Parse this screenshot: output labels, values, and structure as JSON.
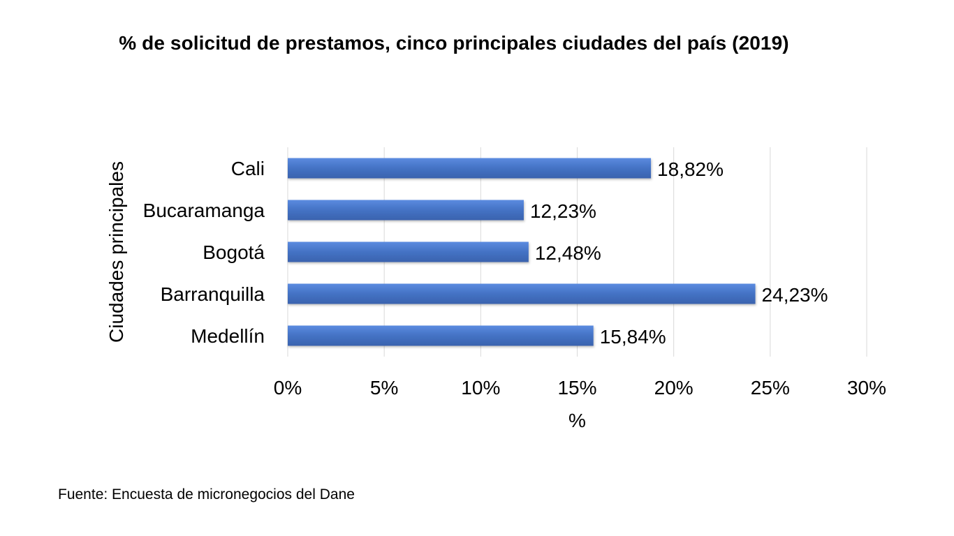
{
  "chart_data": {
    "type": "bar",
    "orientation": "horizontal",
    "title": "% de solicitud de prestamos, cinco principales ciudades del país (2019)",
    "categories": [
      "Cali",
      "Bucaramanga",
      "Bogotá",
      "Barranquilla",
      "Medellín"
    ],
    "values": [
      18.82,
      12.23,
      12.48,
      24.23,
      15.84
    ],
    "data_labels": [
      "18,82%",
      "12,23%",
      "12,48%",
      "24,23%",
      "15,84%"
    ],
    "xlabel": "%",
    "ylabel": "Ciudades principales",
    "xlim": [
      0,
      30
    ],
    "xticks": [
      0,
      5,
      10,
      15,
      20,
      25,
      30
    ],
    "xtick_labels": [
      "0%",
      "5%",
      "10%",
      "15%",
      "20%",
      "25%",
      "30%"
    ],
    "grid": true,
    "legend": "none",
    "bar_color": "#4472C4"
  },
  "source": "Fuente: Encuesta de micronegocios del Dane"
}
